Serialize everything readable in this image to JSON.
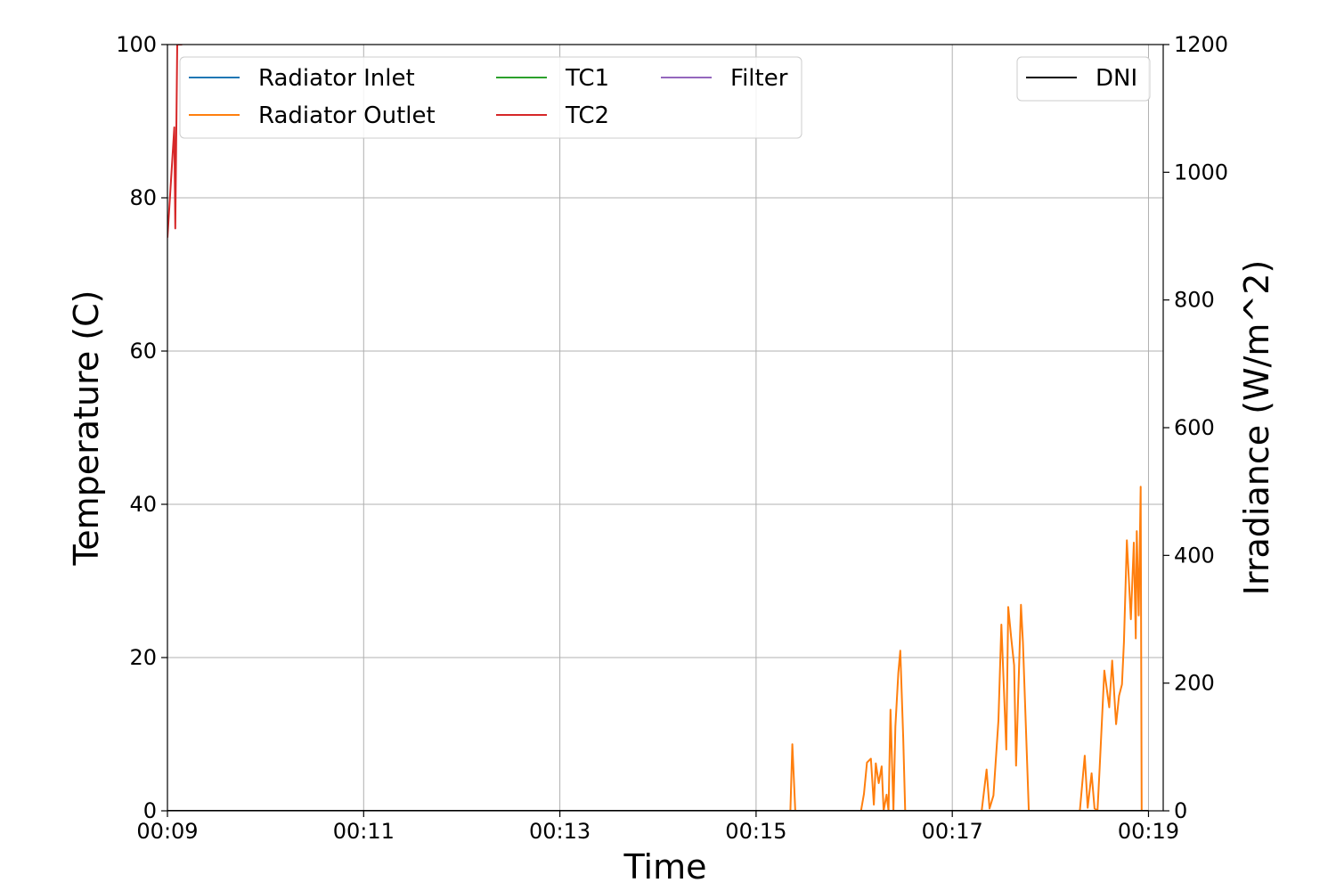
{
  "chart_data": {
    "type": "line",
    "xlabel": "Time",
    "ylabel": "Temperature (C)",
    "y2label": "Irradiance (W/m^2)",
    "xlim": [
      9,
      19.15
    ],
    "ylim": [
      0,
      100
    ],
    "y2lim": [
      0,
      1200
    ],
    "x_ticks": [
      {
        "value": 9,
        "label": "00:09"
      },
      {
        "value": 11,
        "label": "00:11"
      },
      {
        "value": 13,
        "label": "00:13"
      },
      {
        "value": 15,
        "label": "00:15"
      },
      {
        "value": 17,
        "label": "00:17"
      },
      {
        "value": 19,
        "label": "00:19"
      }
    ],
    "y_ticks": [
      0,
      20,
      40,
      60,
      80,
      100
    ],
    "y2_ticks": [
      0,
      200,
      400,
      600,
      800,
      1000,
      1200
    ],
    "grid": true,
    "legend_left": {
      "placement": "upper-left",
      "entries": [
        "Radiator Inlet",
        "Radiator Outlet",
        "TC1",
        "TC2",
        "Filter"
      ]
    },
    "legend_right": {
      "placement": "upper-right",
      "entries": [
        "DNI"
      ]
    },
    "series": [
      {
        "name": "Radiator Inlet",
        "axis": "left",
        "color": "#1f77b4",
        "x": [],
        "y": []
      },
      {
        "name": "Radiator Outlet",
        "axis": "left",
        "color": "#ff7f0e",
        "x": [
          9.0,
          15.3,
          15.35,
          15.37,
          15.4,
          15.45,
          16.07,
          16.1,
          16.13,
          16.17,
          16.2,
          16.22,
          16.25,
          16.28,
          16.3,
          16.33,
          16.35,
          16.37,
          16.4,
          16.42,
          16.45,
          16.47,
          16.5,
          16.52,
          16.57,
          16.62,
          16.65,
          16.7,
          17.3,
          17.35,
          17.38,
          17.42,
          17.47,
          17.5,
          17.55,
          17.57,
          17.6,
          17.63,
          17.65,
          17.7,
          17.72,
          17.75,
          17.78,
          17.82,
          17.85,
          17.9,
          17.95,
          18.3,
          18.35,
          18.38,
          18.42,
          18.45,
          18.48,
          18.5,
          18.55,
          18.6,
          18.63,
          18.67,
          18.7,
          18.73,
          18.75,
          18.78,
          18.82,
          18.85,
          18.87,
          18.88,
          18.9,
          18.92,
          18.93,
          18.95,
          18.97,
          19.0
        ],
        "y": [
          0,
          0,
          0,
          8.7,
          0,
          0,
          0,
          2.2,
          6.3,
          6.8,
          0.8,
          6.2,
          3.6,
          5.8,
          0,
          2.1,
          0,
          13.2,
          0,
          11.0,
          18.0,
          20.9,
          9.5,
          0,
          0,
          0,
          0,
          0,
          0,
          5.4,
          0.3,
          2.0,
          11.8,
          24.3,
          8.0,
          26.6,
          22.6,
          19.0,
          5.9,
          26.9,
          22.0,
          11.0,
          0,
          0,
          0,
          0,
          0,
          0,
          7.2,
          0.4,
          4.9,
          0.3,
          0,
          5.0,
          18.3,
          13.5,
          19.6,
          11.3,
          15.0,
          16.5,
          22.0,
          35.3,
          25.0,
          35.0,
          22.5,
          36.5,
          25.5,
          42.3,
          0,
          0,
          0,
          0
        ]
      },
      {
        "name": "TC1",
        "axis": "left",
        "color": "#2ca02c",
        "x": [],
        "y": []
      },
      {
        "name": "TC2",
        "axis": "left",
        "color": "#d62728",
        "x": [
          9.0,
          9.07,
          9.08,
          9.1,
          9.15
        ],
        "y": [
          74.8,
          89.2,
          76.0,
          100,
          100
        ]
      },
      {
        "name": "Filter",
        "axis": "left",
        "color": "#9467bd",
        "x": [],
        "y": []
      },
      {
        "name": "DNI",
        "axis": "right",
        "color": "#000000",
        "x": [
          9.0,
          19.0
        ],
        "y": [
          0,
          0
        ]
      }
    ]
  }
}
